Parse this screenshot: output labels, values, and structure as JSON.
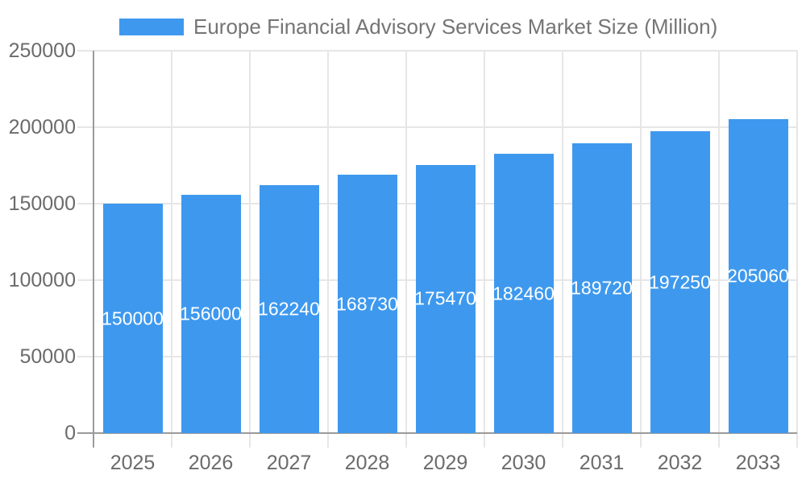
{
  "chart_data": {
    "type": "bar",
    "title": "Europe Financial Advisory Services Market Size (Million)",
    "legend_position": "top",
    "categories": [
      "2025",
      "2026",
      "2027",
      "2028",
      "2029",
      "2030",
      "2031",
      "2032",
      "2033"
    ],
    "values": [
      150000,
      156000,
      162240,
      168730,
      175470,
      182460,
      189720,
      197250,
      205060
    ],
    "bar_value_labels": [
      "150000",
      "156000",
      "162240",
      "168730",
      "175470",
      "182460",
      "189720",
      "197250",
      "205060"
    ],
    "xlabel": "",
    "ylabel": "",
    "ylim": [
      0,
      250000
    ],
    "yticks": [
      0,
      50000,
      100000,
      150000,
      200000,
      250000
    ],
    "grid": true
  },
  "colors": {
    "bar": "#3E99EE",
    "bar_label_text": "#ffffff",
    "axis_line": "#9b9b9b",
    "gridline": "#e6e6e6",
    "tick_text": "#6b6b6b",
    "title_text": "#757575"
  }
}
